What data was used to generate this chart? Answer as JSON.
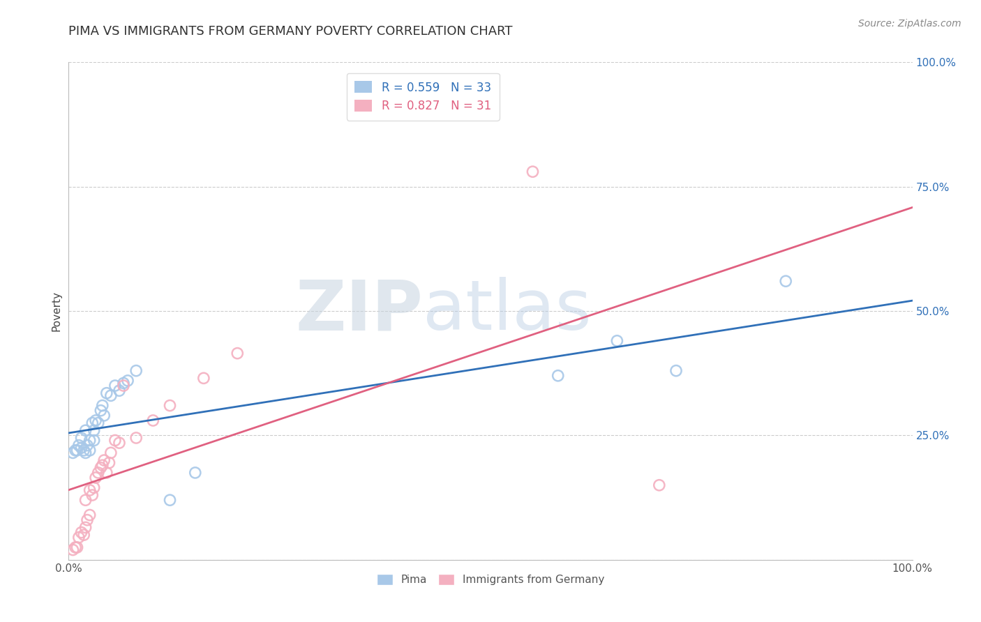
{
  "title": "PIMA VS IMMIGRANTS FROM GERMANY POVERTY CORRELATION CHART",
  "source": "Source: ZipAtlas.com",
  "ylabel": "Poverty",
  "watermark_zip": "ZIP",
  "watermark_atlas": "atlas",
  "xlim": [
    0,
    1
  ],
  "ylim": [
    0,
    1
  ],
  "xticks": [
    0,
    0.25,
    0.5,
    0.75,
    1.0
  ],
  "xtick_labels": [
    "0.0%",
    "",
    "",
    "",
    "100.0%"
  ],
  "ytick_labels_right": [
    "",
    "25.0%",
    "50.0%",
    "75.0%",
    "100.0%"
  ],
  "pima_color": "#a8c8e8",
  "germany_color": "#f4b0c0",
  "pima_line_color": "#3070b8",
  "germany_line_color": "#e06080",
  "legend_blue_label": "R = 0.559   N = 33",
  "legend_pink_label": "R = 0.827   N = 31",
  "pima_x": [
    0.005,
    0.008,
    0.01,
    0.012,
    0.015,
    0.015,
    0.018,
    0.02,
    0.02,
    0.022,
    0.025,
    0.025,
    0.028,
    0.03,
    0.03,
    0.032,
    0.035,
    0.038,
    0.04,
    0.042,
    0.045,
    0.05,
    0.055,
    0.06,
    0.065,
    0.07,
    0.08,
    0.12,
    0.15,
    0.58,
    0.65,
    0.72,
    0.85
  ],
  "pima_y": [
    0.215,
    0.22,
    0.22,
    0.23,
    0.225,
    0.245,
    0.22,
    0.215,
    0.26,
    0.23,
    0.22,
    0.24,
    0.275,
    0.24,
    0.26,
    0.28,
    0.275,
    0.3,
    0.31,
    0.29,
    0.335,
    0.33,
    0.35,
    0.34,
    0.355,
    0.36,
    0.38,
    0.12,
    0.175,
    0.37,
    0.44,
    0.38,
    0.56
  ],
  "germany_x": [
    0.005,
    0.008,
    0.01,
    0.012,
    0.015,
    0.018,
    0.02,
    0.02,
    0.022,
    0.025,
    0.025,
    0.028,
    0.03,
    0.032,
    0.035,
    0.038,
    0.04,
    0.042,
    0.045,
    0.048,
    0.05,
    0.055,
    0.06,
    0.065,
    0.08,
    0.1,
    0.12,
    0.16,
    0.2,
    0.55,
    0.7
  ],
  "germany_y": [
    0.02,
    0.025,
    0.025,
    0.045,
    0.055,
    0.05,
    0.065,
    0.12,
    0.08,
    0.09,
    0.14,
    0.13,
    0.145,
    0.165,
    0.175,
    0.185,
    0.19,
    0.2,
    0.175,
    0.195,
    0.215,
    0.24,
    0.235,
    0.35,
    0.245,
    0.28,
    0.31,
    0.365,
    0.415,
    0.78,
    0.15
  ],
  "title_fontsize": 13,
  "axis_fontsize": 11,
  "tick_fontsize": 11,
  "source_fontsize": 10,
  "grid_color": "#cccccc",
  "background_color": "#ffffff"
}
